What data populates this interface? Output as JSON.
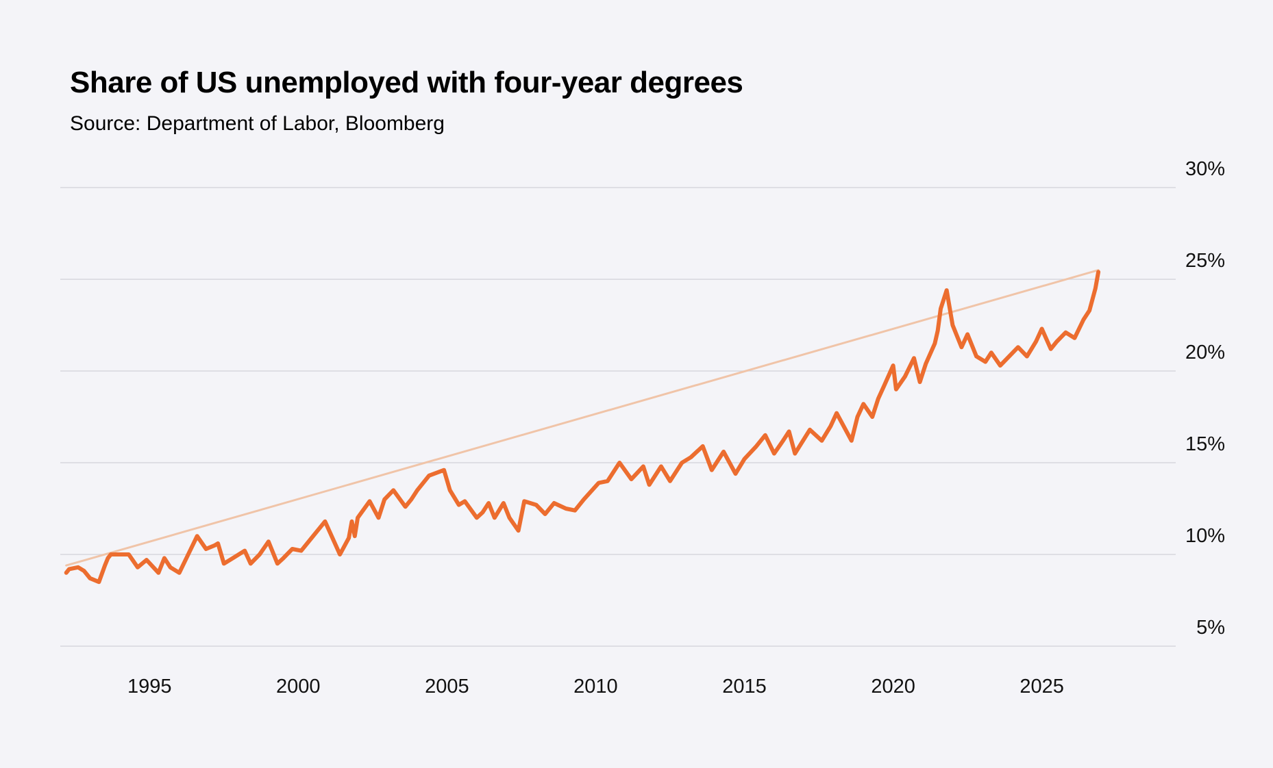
{
  "title": "Share of US unemployed with four-year degrees",
  "subtitle": "Source: Department of Labor, Bloomberg",
  "colors": {
    "background": "#f4f4f8",
    "line": "#ec6d2f",
    "trend": "#f0c4a8",
    "grid": "#d6d6de"
  },
  "chart_data": {
    "type": "line",
    "title": "Share of US unemployed with four-year degrees",
    "subtitle": "Source: Department of Labor, Bloomberg",
    "xlabel": "",
    "ylabel": "",
    "xlim": [
      1992,
      2029.5
    ],
    "ylim": [
      5,
      30
    ],
    "x_ticks": [
      1995,
      2000,
      2005,
      2010,
      2015,
      2020,
      2025
    ],
    "y_ticks": [
      5,
      10,
      15,
      20,
      25,
      30
    ],
    "y_tick_labels": [
      "5%",
      "10%",
      "15%",
      "20%",
      "25%",
      "30%"
    ],
    "y_axis_position": "right",
    "grid": true,
    "legend": "none",
    "series": [
      {
        "style": "trend",
        "x": [
          1992.2,
          2026.9
        ],
        "y": [
          9.4,
          25.5
        ]
      },
      {
        "x": [
          1992.2,
          1992.3,
          1992.6,
          1992.8,
          1993.0,
          1993.3,
          1993.5,
          1993.6,
          1993.7,
          1994.3,
          1994.6,
          1994.9,
          1995.3,
          1995.5,
          1995.7,
          1996.0,
          1996.3,
          1996.6,
          1996.9,
          1997.2,
          1997.3,
          1997.5,
          1997.8,
          1998.2,
          1998.4,
          1998.7,
          1999.0,
          1999.3,
          1999.5,
          1999.8,
          2000.1,
          2000.5,
          2000.7,
          2000.9,
          2001.4,
          2001.7,
          2001.8,
          2001.9,
          2002.0,
          2002.4,
          2002.7,
          2002.9,
          2003.2,
          2003.6,
          2003.8,
          2004.0,
          2004.4,
          2004.9,
          2005.1,
          2005.4,
          2005.6,
          2006.0,
          2006.2,
          2006.4,
          2006.6,
          2006.9,
          2007.1,
          2007.4,
          2007.6,
          2008.0,
          2008.3,
          2008.6,
          2009.0,
          2009.3,
          2009.6,
          2010.1,
          2010.4,
          2010.6,
          2010.8,
          2011.2,
          2011.6,
          2011.8,
          2012.2,
          2012.5,
          2012.9,
          2013.2,
          2013.6,
          2013.9,
          2014.3,
          2014.7,
          2015.0,
          2015.4,
          2015.7,
          2016.0,
          2016.3,
          2016.5,
          2016.7,
          2017.2,
          2017.6,
          2017.9,
          2018.1,
          2018.6,
          2018.8,
          2019.0,
          2019.3,
          2019.5,
          2019.7,
          2020.0,
          2020.1,
          2020.4,
          2020.7,
          2020.9,
          2021.1,
          2021.4,
          2021.5,
          2021.6,
          2021.8,
          2022.0,
          2022.3,
          2022.5,
          2022.8,
          2023.1,
          2023.3,
          2023.6,
          2023.9,
          2024.2,
          2024.5,
          2024.8,
          2025.0,
          2025.3,
          2025.5,
          2025.8,
          2026.1,
          2026.4,
          2026.6,
          2026.8,
          2026.9
        ],
        "y": [
          9.0,
          9.2,
          9.3,
          9.1,
          8.7,
          8.5,
          9.4,
          9.8,
          10.0,
          10.0,
          9.3,
          9.7,
          9.0,
          9.8,
          9.3,
          9.0,
          10.0,
          11.0,
          10.3,
          10.5,
          10.6,
          9.5,
          9.8,
          10.2,
          9.5,
          10.0,
          10.7,
          9.5,
          9.8,
          10.3,
          10.2,
          11.0,
          11.4,
          11.8,
          10.0,
          10.9,
          11.8,
          11.0,
          12.0,
          12.9,
          12.0,
          13.0,
          13.5,
          12.6,
          13.0,
          13.5,
          14.3,
          14.6,
          13.5,
          12.7,
          12.9,
          12.0,
          12.3,
          12.8,
          12.0,
          12.8,
          12.0,
          11.3,
          12.9,
          12.7,
          12.2,
          12.8,
          12.5,
          12.4,
          13.0,
          13.9,
          14.0,
          14.5,
          15.0,
          14.1,
          14.8,
          13.8,
          14.8,
          14.0,
          15.0,
          15.3,
          15.9,
          14.6,
          15.6,
          14.4,
          15.2,
          15.9,
          16.5,
          15.5,
          16.2,
          16.7,
          15.5,
          16.8,
          16.2,
          17.0,
          17.7,
          16.2,
          17.5,
          18.2,
          17.5,
          18.5,
          19.2,
          20.3,
          19.0,
          19.7,
          20.7,
          19.4,
          20.4,
          21.5,
          22.2,
          23.4,
          24.4,
          22.5,
          21.3,
          22.0,
          20.8,
          20.5,
          21.0,
          20.3,
          20.8,
          21.3,
          20.8,
          21.6,
          22.3,
          21.2,
          21.6,
          22.1,
          21.8,
          22.8,
          23.3,
          24.5,
          25.4
        ]
      }
    ]
  }
}
